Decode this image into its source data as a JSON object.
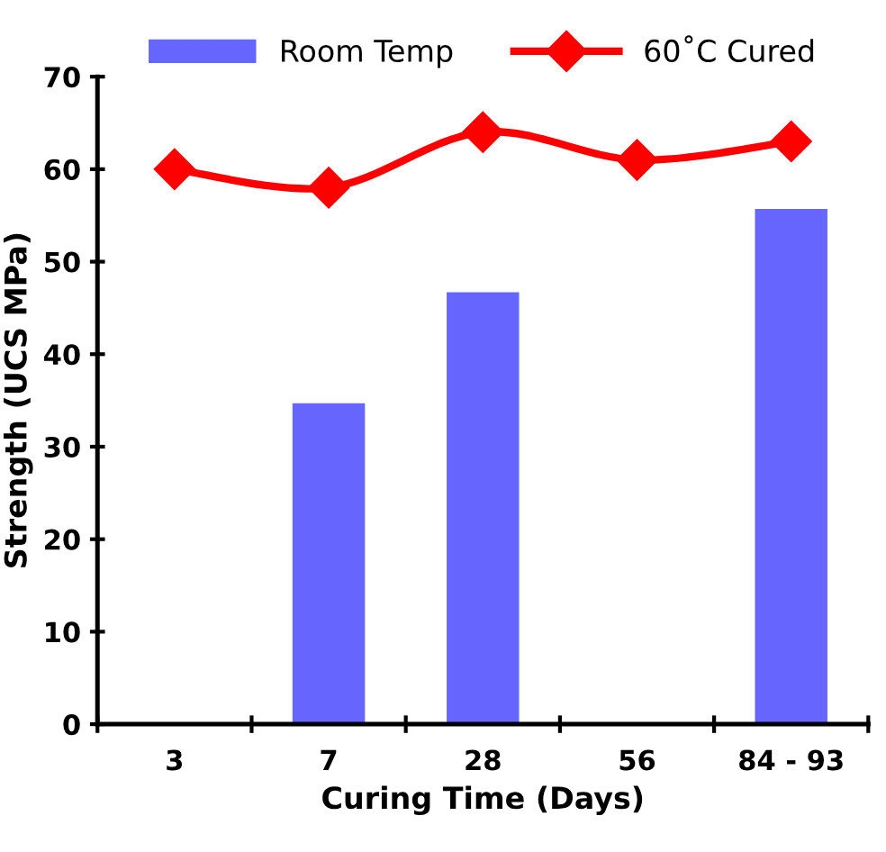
{
  "chart_data": {
    "type": "bar",
    "xlabel": "Curing Time (Days)",
    "ylabel": "Strength (UCS MPa)",
    "categories": [
      "3",
      "7",
      "28",
      "56",
      "84 - 93"
    ],
    "series": [
      {
        "name": "Room Temp",
        "color": "#6666ff",
        "values": [
          null,
          34.7,
          46.7,
          null,
          55.7
        ]
      },
      {
        "name": "60˚C Cured",
        "type": "line",
        "color": "#ff0000",
        "marker": "diamond",
        "values": [
          60,
          58,
          64,
          61,
          63
        ]
      }
    ],
    "ylim": [
      0,
      70
    ],
    "yticks": [
      0,
      10,
      20,
      30,
      40,
      50,
      60,
      70
    ],
    "grid": false,
    "legend": "top"
  }
}
